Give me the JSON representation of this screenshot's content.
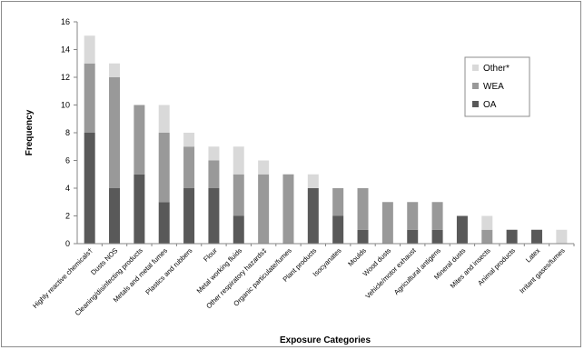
{
  "chart_data": {
    "type": "bar",
    "stacked": true,
    "title": "",
    "xlabel": "Exposure Categories",
    "ylabel": "Frequency",
    "ylim": [
      0,
      16
    ],
    "yticks": [
      0,
      2,
      4,
      6,
      8,
      10,
      12,
      14,
      16
    ],
    "grid": false,
    "legend_position": "top-right",
    "categories": [
      "Highly reactive chemicals†",
      "Dusts NOS",
      "Cleaning/disinfecting products",
      "Metals and metal fumes",
      "Plastics and rubbers",
      "Flour",
      "Metal working fluids",
      "Other respiratory hazards‡",
      "Organic particulate/fumes",
      "Plant products",
      "Isocyanates",
      "Moulds",
      "Wood dusts",
      "Vehicle/motor exhaust",
      "Agricultural antigens",
      "Mineral dusts",
      "Mites and insects",
      "Animal products",
      "Latex",
      "Irritant gases/fumes"
    ],
    "series": [
      {
        "name": "OA",
        "color": "#595959",
        "values": [
          8,
          4,
          5,
          3,
          4,
          4,
          2,
          0,
          0,
          4,
          2,
          1,
          0,
          1,
          1,
          2,
          0,
          1,
          1,
          0
        ]
      },
      {
        "name": "WEA",
        "color": "#999999",
        "values": [
          5,
          8,
          5,
          5,
          3,
          2,
          3,
          5,
          5,
          0,
          2,
          3,
          3,
          2,
          2,
          0,
          1,
          0,
          0,
          0
        ]
      },
      {
        "name": "Other*",
        "color": "#d9d9d9",
        "values": [
          2,
          1,
          0,
          2,
          1,
          1,
          2,
          1,
          0,
          1,
          0,
          0,
          0,
          0,
          0,
          0,
          1,
          0,
          0,
          1
        ]
      }
    ],
    "legend_order": [
      "Other*",
      "WEA",
      "OA"
    ]
  }
}
